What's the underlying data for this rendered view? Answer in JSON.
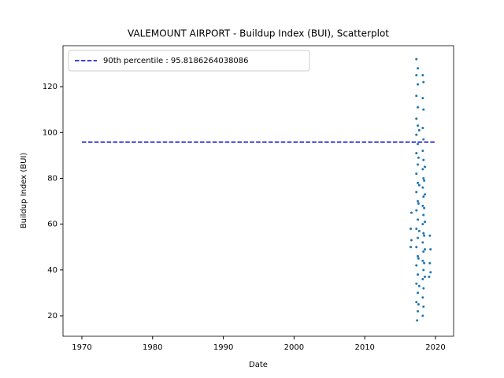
{
  "chart_data": {
    "type": "scatter",
    "title": "VALEMOUNT AIRPORT - Buildup Index (BUI), Scatterplot",
    "x_label": "Date",
    "y_label": "Buildup Index (BUI)",
    "xlim": [
      1967.33,
      2022.56
    ],
    "ylim": [
      11.07,
      137.9
    ],
    "xticks": [
      1970,
      1980,
      1990,
      2000,
      2010,
      2020
    ],
    "yticks": [
      20,
      40,
      60,
      80,
      100,
      120
    ],
    "grid": false,
    "legend": "upper left",
    "series": [
      {
        "color": "#1f77b4",
        "x": [
          2017.3,
          2017.5,
          2017.3,
          2017.5,
          2017.3,
          2017.5,
          2017.3,
          2017.5,
          2017.3,
          2017.5,
          2017.3,
          2017.5,
          2017.3,
          2017.5,
          2017.3,
          2017.5,
          2017.3,
          2017.5,
          2017.3,
          2017.5,
          2017.3,
          2017.5,
          2017.3,
          2017.5,
          2017.3,
          2017.5,
          2017.3,
          2017.5,
          2017.4,
          2018.2,
          2018.3,
          2018.2,
          2018.3,
          2018.2,
          2018.3,
          2018.2,
          2018.3,
          2018.2,
          2018.3,
          2018.2,
          2018.3,
          2018.2,
          2018.3,
          2018.2,
          2018.3,
          2018.2,
          2018.3,
          2018.2,
          2018.3,
          2018.2,
          2018.3,
          2018.2,
          2018.3,
          2018.2,
          2018.5,
          2018.4,
          2018.5,
          2018.4,
          2018.5,
          2018.4,
          2018.5,
          2018.4,
          2018.5,
          2016.6,
          2016.5,
          2016.6,
          2016.5,
          2019.2,
          2019.3,
          2019.2,
          2019.3,
          2019.1,
          2017.7,
          2017.6,
          2017.7,
          2017.6,
          2017.7,
          2017.6,
          2017.7,
          2017.6
        ],
        "values": [
          132,
          128,
          125,
          121,
          116,
          111,
          106,
          103,
          99,
          95,
          91,
          86,
          82,
          78,
          74,
          70,
          66,
          62,
          58,
          54,
          50,
          46,
          42,
          38,
          34,
          30,
          26,
          22,
          18,
          125,
          122,
          115,
          110,
          102,
          97,
          92,
          88,
          84,
          80,
          76,
          72,
          68,
          64,
          60,
          56,
          52,
          48,
          44,
          40,
          36,
          32,
          28,
          24,
          20,
          85,
          79,
          73,
          67,
          61,
          55,
          49,
          43,
          37,
          65,
          58,
          53,
          50,
          55,
          49,
          43,
          39,
          37,
          101,
          89,
          77,
          69,
          57,
          45,
          33,
          25
        ]
      }
    ],
    "reference_line": {
      "name": "90th percentile : 95.8186264038086",
      "color": "#0000cc",
      "style": "dashed",
      "x": [
        1970,
        2020
      ],
      "values": [
        95.8186264038086,
        95.8186264038086
      ]
    }
  }
}
